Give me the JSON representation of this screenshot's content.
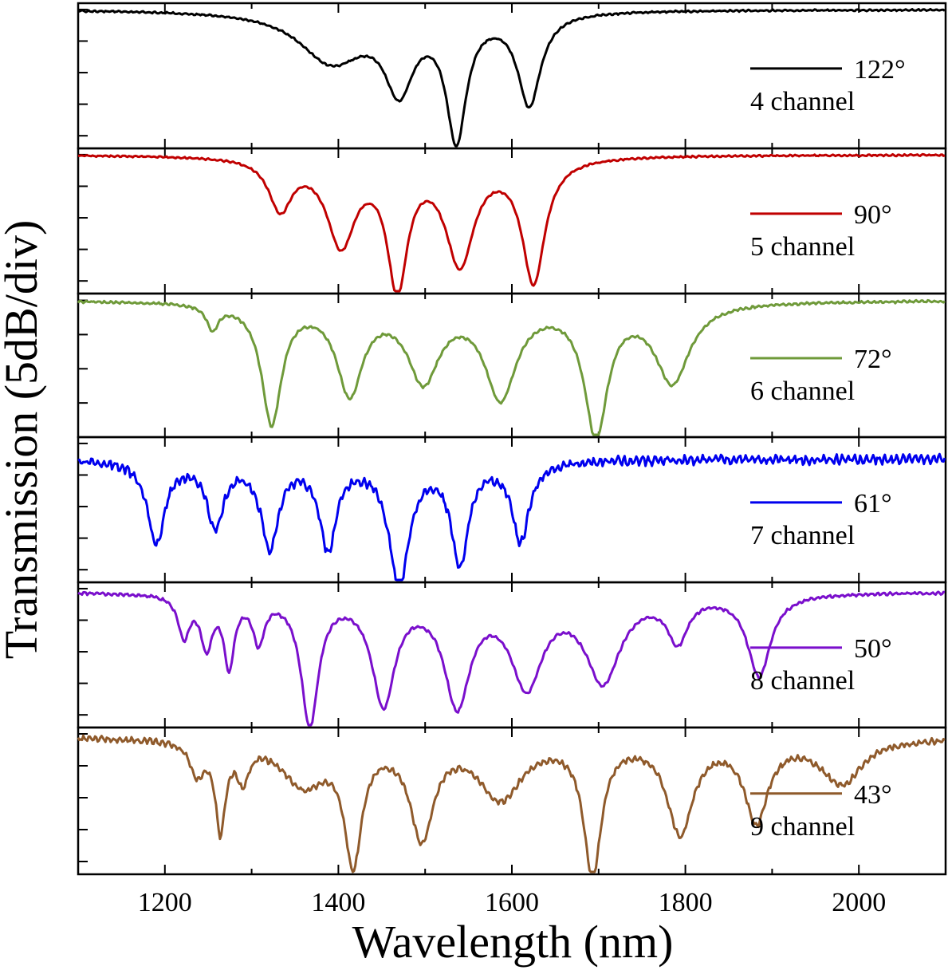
{
  "chart_data": {
    "type": "line",
    "xlabel": "Wavelength (nm)",
    "ylabel": "Transmission (5dB/div)",
    "xlim": [
      1100,
      2100
    ],
    "x_ticks": [
      1200,
      1400,
      1600,
      1800,
      2000
    ],
    "y_units_per_div": 5,
    "grid": false,
    "legend_position": "right",
    "panels": [
      {
        "series_name": "122°",
        "angle": "122°",
        "channels": "4 channel",
        "color": "#000000",
        "ylim": [
          -22,
          1
        ],
        "baseline": 0,
        "dips": [
          {
            "center": 1392,
            "depth": 8.0,
            "width": 45
          },
          {
            "center": 1470,
            "depth": 11.5,
            "width": 20
          },
          {
            "center": 1536,
            "depth": 19.5,
            "width": 14
          },
          {
            "center": 1620,
            "depth": 14.5,
            "width": 16
          }
        ],
        "ripple": 0.15
      },
      {
        "series_name": "90°",
        "angle": "90°",
        "channels": "5 channel",
        "color": "#c00000",
        "ylim": [
          -22,
          1
        ],
        "baseline": 0,
        "dips": [
          {
            "center": 1333,
            "depth": 8.0,
            "width": 16
          },
          {
            "center": 1403,
            "depth": 13.5,
            "width": 20
          },
          {
            "center": 1468,
            "depth": 20.0,
            "width": 14
          },
          {
            "center": 1540,
            "depth": 16.5,
            "width": 20
          },
          {
            "center": 1625,
            "depth": 19.5,
            "width": 16
          }
        ],
        "ripple": 0.15
      },
      {
        "series_name": "72°",
        "angle": "72°",
        "channels": "6 channel",
        "color": "#6f9a3a",
        "ylim": [
          -20,
          1
        ],
        "baseline": 0,
        "dips": [
          {
            "center": 1255,
            "depth": 3.5,
            "width": 8
          },
          {
            "center": 1323,
            "depth": 17.5,
            "width": 14
          },
          {
            "center": 1413,
            "depth": 13.0,
            "width": 18
          },
          {
            "center": 1498,
            "depth": 11.0,
            "width": 22
          },
          {
            "center": 1587,
            "depth": 13.5,
            "width": 22
          },
          {
            "center": 1697,
            "depth": 19.0,
            "width": 16
          },
          {
            "center": 1785,
            "depth": 11.5,
            "width": 24
          }
        ],
        "ripple": 0.2
      },
      {
        "series_name": "61°",
        "angle": "61°",
        "channels": "7 channel",
        "color": "#0000ee",
        "ylim": [
          -22,
          1
        ],
        "baseline": -2.5,
        "dips": [
          {
            "center": 1190,
            "depth": 13.0,
            "width": 12
          },
          {
            "center": 1258,
            "depth": 10.0,
            "width": 12
          },
          {
            "center": 1321,
            "depth": 13.5,
            "width": 12
          },
          {
            "center": 1388,
            "depth": 13.5,
            "width": 12
          },
          {
            "center": 1470,
            "depth": 19.5,
            "width": 14
          },
          {
            "center": 1540,
            "depth": 16.0,
            "width": 12
          },
          {
            "center": 1610,
            "depth": 12.5,
            "width": 12
          }
        ],
        "ripple": 0.8
      },
      {
        "series_name": "50°",
        "angle": "50°",
        "channels": "8 channel",
        "color": "#7a0fcc",
        "ylim": [
          -22,
          1
        ],
        "baseline": -0.5,
        "dips": [
          {
            "center": 1222,
            "depth": 6.5,
            "width": 8
          },
          {
            "center": 1248,
            "depth": 8.0,
            "width": 8
          },
          {
            "center": 1274,
            "depth": 11.0,
            "width": 7
          },
          {
            "center": 1308,
            "depth": 7.0,
            "width": 8
          },
          {
            "center": 1367,
            "depth": 20.5,
            "width": 12
          },
          {
            "center": 1452,
            "depth": 17.0,
            "width": 16
          },
          {
            "center": 1537,
            "depth": 17.0,
            "width": 18
          },
          {
            "center": 1617,
            "depth": 14.0,
            "width": 22
          },
          {
            "center": 1705,
            "depth": 13.5,
            "width": 24
          },
          {
            "center": 1791,
            "depth": 7.0,
            "width": 14
          },
          {
            "center": 1885,
            "depth": 13.0,
            "width": 16
          }
        ],
        "ripple": 0.25
      },
      {
        "series_name": "43°",
        "angle": "43°",
        "channels": "9 channel",
        "color": "#8f5a2b",
        "ylim": [
          -22,
          1
        ],
        "baseline": -0.5,
        "dips": [
          {
            "center": 1237,
            "depth": 5.0,
            "width": 10
          },
          {
            "center": 1264,
            "depth": 13.5,
            "width": 7
          },
          {
            "center": 1290,
            "depth": 5.5,
            "width": 8
          },
          {
            "center": 1360,
            "depth": 7.0,
            "width": 30
          },
          {
            "center": 1417,
            "depth": 18.5,
            "width": 12
          },
          {
            "center": 1496,
            "depth": 15.0,
            "width": 16
          },
          {
            "center": 1587,
            "depth": 9.0,
            "width": 30
          },
          {
            "center": 1693,
            "depth": 21.0,
            "width": 12
          },
          {
            "center": 1794,
            "depth": 14.5,
            "width": 18
          },
          {
            "center": 1882,
            "depth": 12.5,
            "width": 16
          },
          {
            "center": 1980,
            "depth": 7.0,
            "width": 28
          }
        ],
        "ripple": 0.5
      }
    ]
  }
}
